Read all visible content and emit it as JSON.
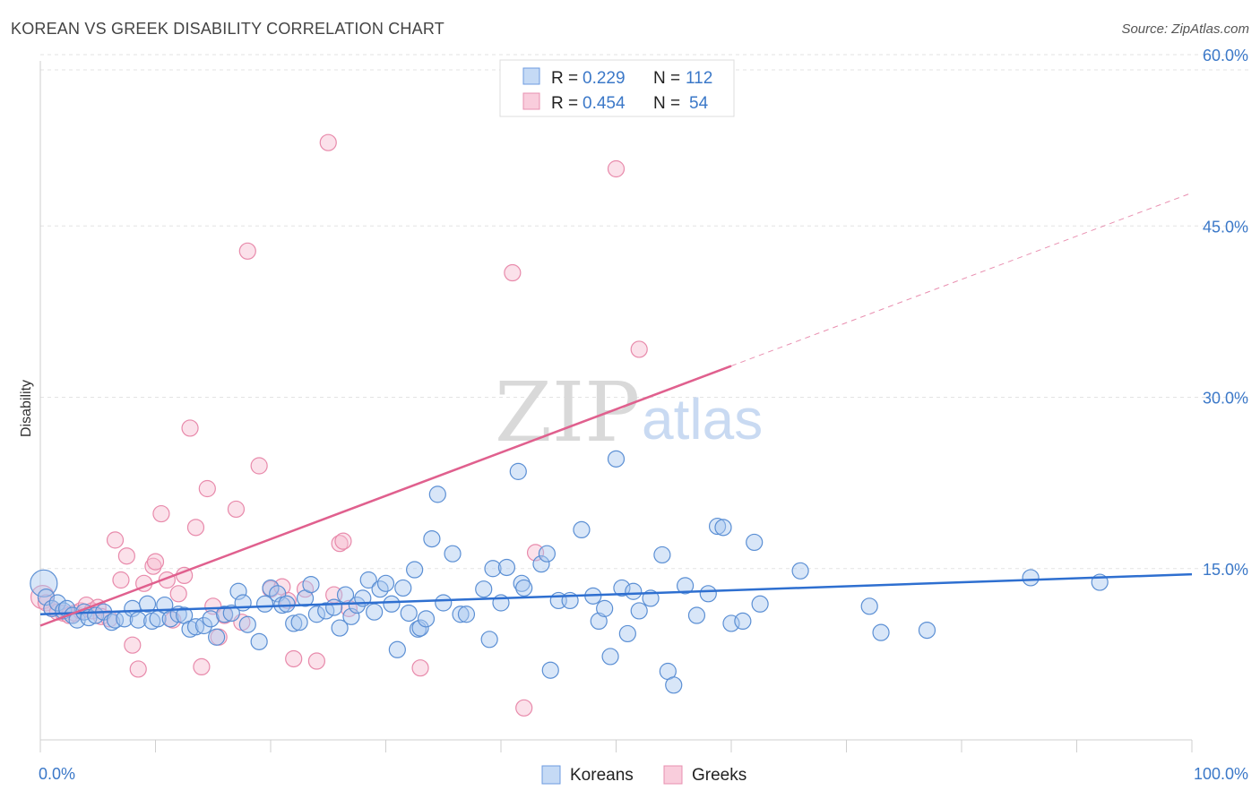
{
  "header": {
    "title": "KOREAN VS GREEK DISABILITY CORRELATION CHART",
    "source": "Source: ZipAtlas.com"
  },
  "watermark": {
    "part1": "ZIP",
    "part2": "atlas"
  },
  "legend_top": {
    "koreans": {
      "r_label": "R =",
      "r_value": "0.229",
      "n_label": "N =",
      "n_value": "112"
    },
    "greeks": {
      "r_label": "R =",
      "r_value": "0.454",
      "n_label": "N =",
      "n_value": "54"
    }
  },
  "legend_bottom": {
    "koreans": "Koreans",
    "greeks": "Greeks"
  },
  "colors": {
    "koreans_fill": "#a9c8f0",
    "koreans_stroke": "#5b8fd4",
    "koreans_line": "#2e6fd0",
    "greeks_fill": "#f7bcd0",
    "greeks_stroke": "#e88aab",
    "greeks_line": "#e0608e",
    "tick_text": "#3b78c8",
    "grid": "#e3e3e3"
  },
  "chart_data": {
    "type": "scatter",
    "title": "KOREAN VS GREEK DISABILITY CORRELATION CHART",
    "xlabel": "",
    "ylabel": "Disability",
    "xlim": [
      0,
      100
    ],
    "ylim": [
      0,
      62
    ],
    "x_tick_labels": [
      "0.0%",
      "100.0%"
    ],
    "y_ticks": [
      15,
      30,
      45,
      60
    ],
    "y_tick_labels": [
      "15.0%",
      "30.0%",
      "45.0%",
      "60.0%"
    ],
    "grid": true,
    "legend_position": "top-center",
    "series": [
      {
        "name": "Koreans",
        "r": 0.229,
        "n": 112,
        "trend": {
          "x0": 0,
          "y0": 11.0,
          "x1": 100,
          "y1": 14.5,
          "dashed_from": null
        },
        "points": [
          [
            0.3,
            13.7
          ],
          [
            0.5,
            12.5
          ],
          [
            1,
            11.5
          ],
          [
            1.5,
            12
          ],
          [
            2,
            11.3
          ],
          [
            2.3,
            11.5
          ],
          [
            2.8,
            10.9
          ],
          [
            3.2,
            10.5
          ],
          [
            3.8,
            11.2
          ],
          [
            4.2,
            10.7
          ],
          [
            4.8,
            10.9
          ],
          [
            5.5,
            11.2
          ],
          [
            6.2,
            10.3
          ],
          [
            6.5,
            10.5
          ],
          [
            7.3,
            10.6
          ],
          [
            8,
            11.5
          ],
          [
            8.5,
            10.5
          ],
          [
            9.3,
            11.9
          ],
          [
            9.7,
            10.4
          ],
          [
            10.2,
            10.6
          ],
          [
            10.8,
            11.8
          ],
          [
            11.3,
            10.6
          ],
          [
            12,
            11
          ],
          [
            12.5,
            10.9
          ],
          [
            13,
            9.7
          ],
          [
            13.5,
            9.9
          ],
          [
            14.2,
            10
          ],
          [
            14.8,
            10.6
          ],
          [
            15.3,
            9
          ],
          [
            16,
            11
          ],
          [
            16.6,
            11.1
          ],
          [
            17.2,
            13
          ],
          [
            17.6,
            12
          ],
          [
            18,
            10.1
          ],
          [
            19,
            8.6
          ],
          [
            19.5,
            11.9
          ],
          [
            20,
            13.3
          ],
          [
            20.6,
            12.8
          ],
          [
            21,
            11.8
          ],
          [
            21.4,
            11.9
          ],
          [
            22,
            10.2
          ],
          [
            22.5,
            10.3
          ],
          [
            23,
            12.4
          ],
          [
            23.5,
            13.6
          ],
          [
            24,
            11
          ],
          [
            24.8,
            11.3
          ],
          [
            25.5,
            11.6
          ],
          [
            26,
            9.8
          ],
          [
            26.5,
            12.7
          ],
          [
            27,
            10.8
          ],
          [
            27.5,
            11.8
          ],
          [
            28,
            12.4
          ],
          [
            28.5,
            14
          ],
          [
            29,
            11.2
          ],
          [
            29.5,
            13.2
          ],
          [
            30,
            13.7
          ],
          [
            30.5,
            11.9
          ],
          [
            31,
            7.9
          ],
          [
            31.5,
            13.3
          ],
          [
            32,
            11.1
          ],
          [
            32.5,
            14.9
          ],
          [
            32.8,
            9.7
          ],
          [
            33,
            9.8
          ],
          [
            33.5,
            10.6
          ],
          [
            34,
            17.6
          ],
          [
            34.5,
            21.5
          ],
          [
            35,
            12
          ],
          [
            35.8,
            16.3
          ],
          [
            36.5,
            11
          ],
          [
            37,
            11
          ],
          [
            38.5,
            13.2
          ],
          [
            39,
            8.8
          ],
          [
            39.3,
            15
          ],
          [
            40,
            12
          ],
          [
            40.5,
            15.1
          ],
          [
            41.5,
            23.5
          ],
          [
            41.8,
            13.7
          ],
          [
            42,
            13.3
          ],
          [
            43.5,
            15.4
          ],
          [
            44,
            16.3
          ],
          [
            44.3,
            6.1
          ],
          [
            45,
            12.2
          ],
          [
            46,
            12.2
          ],
          [
            47,
            18.4
          ],
          [
            48,
            12.6
          ],
          [
            48.5,
            10.4
          ],
          [
            49,
            11.5
          ],
          [
            49.5,
            7.3
          ],
          [
            50,
            24.6
          ],
          [
            50.5,
            13.3
          ],
          [
            51,
            9.3
          ],
          [
            51.5,
            13
          ],
          [
            52,
            11.3
          ],
          [
            53,
            12.4
          ],
          [
            54,
            16.2
          ],
          [
            54.5,
            6
          ],
          [
            55,
            4.8
          ],
          [
            56,
            13.5
          ],
          [
            57,
            10.9
          ],
          [
            58,
            12.8
          ],
          [
            58.8,
            18.7
          ],
          [
            59.3,
            18.6
          ],
          [
            60,
            10.2
          ],
          [
            61,
            10.4
          ],
          [
            62,
            17.3
          ],
          [
            62.5,
            11.9
          ],
          [
            66,
            14.8
          ],
          [
            72,
            11.7
          ],
          [
            73,
            9.4
          ],
          [
            77,
            9.6
          ],
          [
            86,
            14.2
          ],
          [
            92,
            13.8
          ]
        ]
      },
      {
        "name": "Greeks",
        "r": 0.454,
        "n": 54,
        "trend": {
          "x0": 0,
          "y0": 10.0,
          "x1": 100,
          "y1": 47.9,
          "dashed_from": 60
        },
        "points": [
          [
            0.2,
            12.5
          ],
          [
            0.5,
            12
          ],
          [
            1,
            11.5
          ],
          [
            1.5,
            11.2
          ],
          [
            2,
            11.1
          ],
          [
            2.5,
            10.9
          ],
          [
            3,
            11.1
          ],
          [
            3.5,
            11.3
          ],
          [
            4,
            11.8
          ],
          [
            4.5,
            11.3
          ],
          [
            5,
            11.6
          ],
          [
            5.3,
            10.8
          ],
          [
            6,
            10.6
          ],
          [
            6.5,
            17.5
          ],
          [
            7,
            14
          ],
          [
            7.5,
            16.1
          ],
          [
            8,
            8.3
          ],
          [
            8.5,
            6.2
          ],
          [
            9,
            13.7
          ],
          [
            9.8,
            15.2
          ],
          [
            10,
            15.6
          ],
          [
            10.5,
            19.8
          ],
          [
            11,
            14
          ],
          [
            11.5,
            10.5
          ],
          [
            12,
            12.8
          ],
          [
            12.5,
            14.4
          ],
          [
            13,
            27.3
          ],
          [
            13.5,
            18.6
          ],
          [
            14,
            6.4
          ],
          [
            14.5,
            22
          ],
          [
            15,
            11.7
          ],
          [
            15.5,
            9
          ],
          [
            16,
            10.9
          ],
          [
            17,
            20.2
          ],
          [
            17.5,
            10.3
          ],
          [
            18,
            42.8
          ],
          [
            19,
            24
          ],
          [
            20,
            13.2
          ],
          [
            21,
            13.4
          ],
          [
            21.5,
            12.2
          ],
          [
            22,
            7.1
          ],
          [
            23,
            13.2
          ],
          [
            24,
            6.9
          ],
          [
            25,
            52.3
          ],
          [
            25.5,
            12.7
          ],
          [
            26,
            17.2
          ],
          [
            26.3,
            17.4
          ],
          [
            26.8,
            11.5
          ],
          [
            33,
            6.3
          ],
          [
            41,
            40.9
          ],
          [
            42,
            2.8
          ],
          [
            43,
            16.4
          ],
          [
            50,
            50
          ],
          [
            52,
            34.2
          ]
        ]
      }
    ]
  }
}
